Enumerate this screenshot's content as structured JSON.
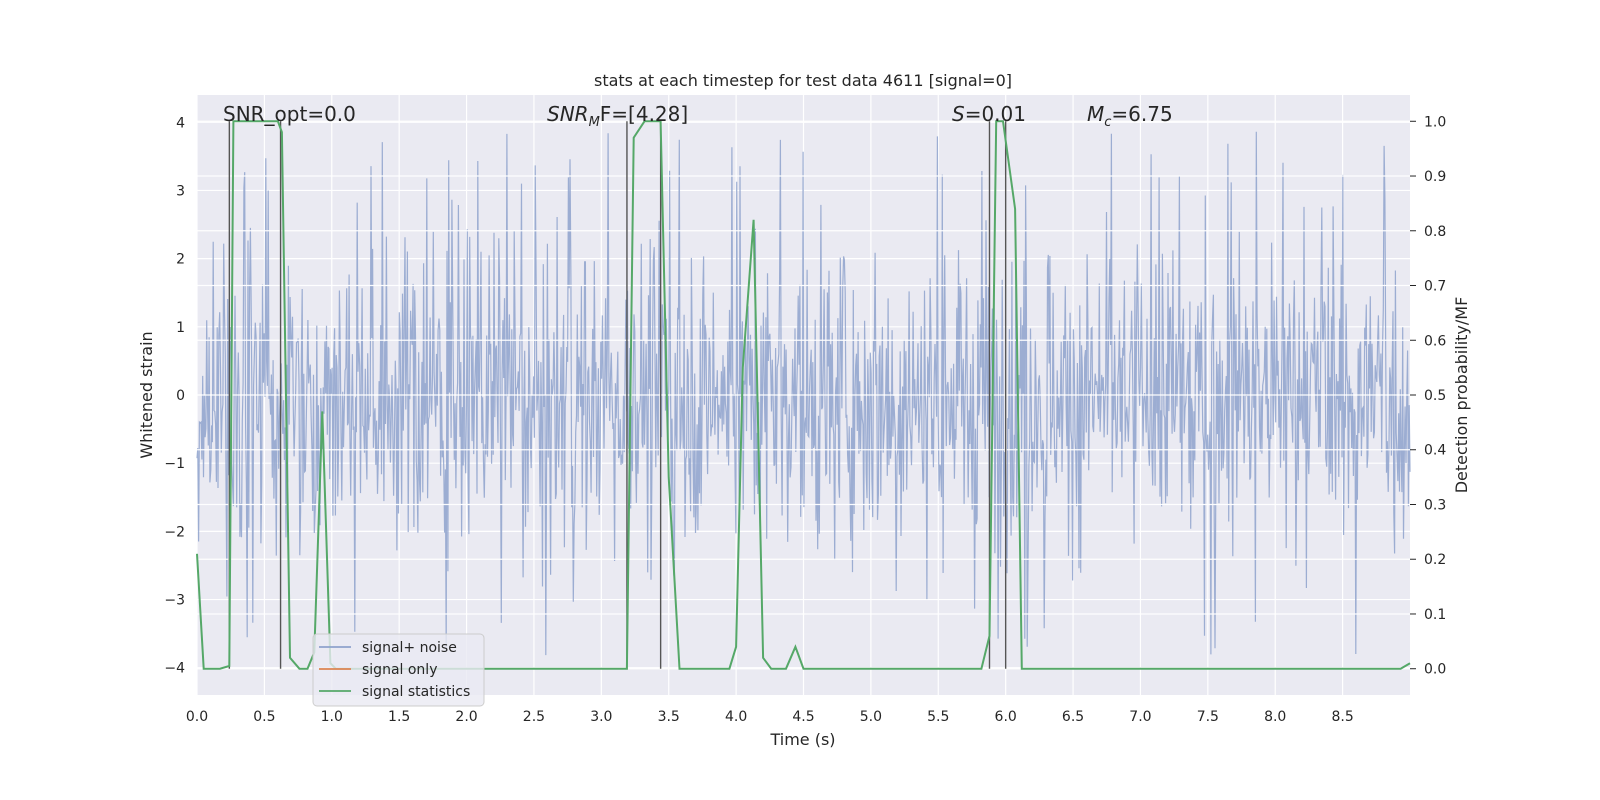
{
  "chart_data": {
    "type": "line",
    "title": "stats at each timestep for test data 4611 [signal=0]",
    "xlabel": "Time (s)",
    "ylabel": "Whitened strain",
    "y2label": "Detection probability/MF",
    "xlim": [
      0.0,
      9.0
    ],
    "ylim": [
      -4.4,
      4.4
    ],
    "y2lim": [
      -0.048,
      1.048
    ],
    "x_ticks": [
      "0.0",
      "0.5",
      "1.0",
      "1.5",
      "2.0",
      "2.5",
      "3.0",
      "3.5",
      "4.0",
      "4.5",
      "5.0",
      "5.5",
      "6.0",
      "6.5",
      "7.0",
      "7.5",
      "8.0",
      "8.5"
    ],
    "y_ticks": [
      "−4",
      "−3",
      "−2",
      "−1",
      "0",
      "1",
      "2",
      "3",
      "4"
    ],
    "y2_ticks": [
      "0.0",
      "0.1",
      "0.2",
      "0.3",
      "0.4",
      "0.5",
      "0.6",
      "0.7",
      "0.8",
      "0.9",
      "1.0"
    ],
    "grid": true,
    "legend_position": "lower-left",
    "annotations": {
      "snr_opt": "SNR_opt=0.0",
      "snr_mf_label": "SNR",
      "snr_mf_sub": "M",
      "snr_mf_rest": "F=[4.28]",
      "s_label": "S",
      "s_value": "=0.01",
      "mc_label": "M",
      "mc_sub": "c",
      "mc_value": "=6.75"
    },
    "vertical_markers": [
      0.24,
      0.62,
      3.19,
      3.44,
      5.88,
      6.0
    ],
    "series": [
      {
        "name": "signal+ noise",
        "color": "#8ea2cc",
        "kind": "noise-band",
        "sample_rate_visual": 1500,
        "typical_abs_amplitude": 2.0,
        "peak_amplitude": 4.0
      },
      {
        "name": "signal only",
        "color": "#dd8452",
        "x": [
          0.0,
          9.0
        ],
        "y": [
          0.0,
          0.0
        ]
      },
      {
        "name": "signal statistics",
        "color": "#55a868",
        "axis": "right",
        "x": [
          0.0,
          0.05,
          0.17,
          0.24,
          0.27,
          0.31,
          0.6,
          0.63,
          0.69,
          0.76,
          0.82,
          0.87,
          0.93,
          0.99,
          1.03,
          3.19,
          3.24,
          3.32,
          3.44,
          3.5,
          3.58,
          3.95,
          4.0,
          4.05,
          4.13,
          4.2,
          4.26,
          4.37,
          4.44,
          4.5,
          5.82,
          5.88,
          5.93,
          5.98,
          6.07,
          6.12,
          8.93,
          9.0
        ],
        "y": [
          0.21,
          0.0,
          0.0,
          0.005,
          1.0,
          1.0,
          1.0,
          0.98,
          0.02,
          0.0,
          0.0,
          0.03,
          0.47,
          0.01,
          0.0,
          0.0,
          0.97,
          1.0,
          1.0,
          0.35,
          0.0,
          0.0,
          0.04,
          0.55,
          0.82,
          0.02,
          0.0,
          0.0,
          0.04,
          0.0,
          0.0,
          0.06,
          1.0,
          1.0,
          0.84,
          0.0,
          0.0,
          0.01
        ]
      }
    ]
  }
}
